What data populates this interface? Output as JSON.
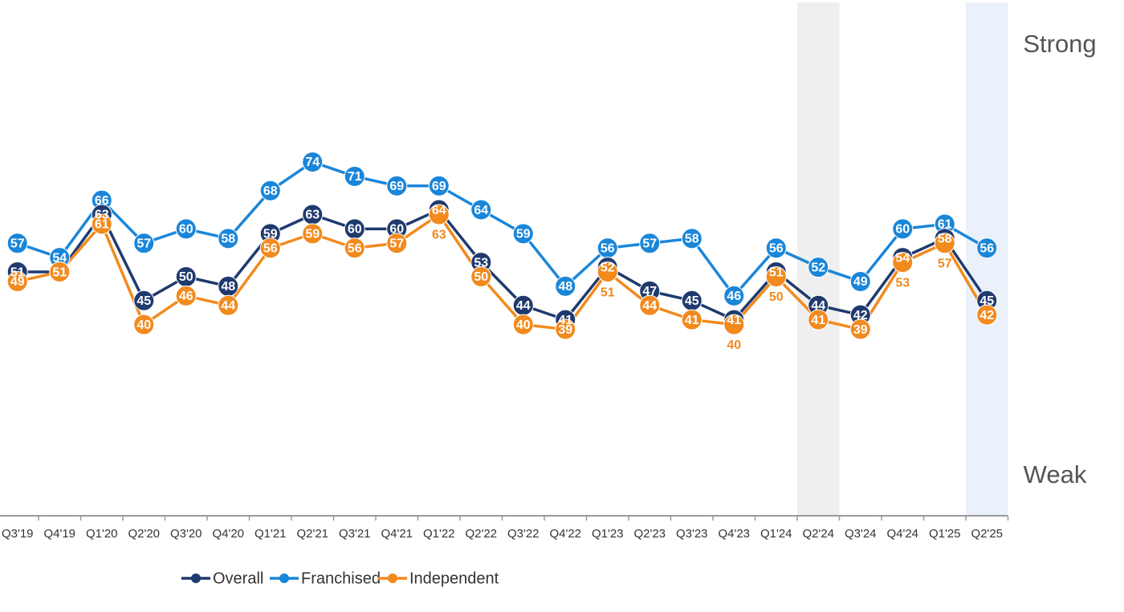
{
  "chart_data": {
    "type": "line",
    "categories": [
      "Q3'19",
      "Q4'19",
      "Q1'20",
      "Q2'20",
      "Q3'20",
      "Q4'20",
      "Q1'21",
      "Q2'21",
      "Q3'21",
      "Q4'21",
      "Q1'22",
      "Q2'22",
      "Q3'22",
      "Q4'22",
      "Q1'23",
      "Q2'23",
      "Q3'23",
      "Q4'23",
      "Q1'24",
      "Q2'24",
      "Q3'24",
      "Q4'24",
      "Q1'25",
      "Q2'25"
    ],
    "series": [
      {
        "name": "Overall",
        "color": "#1f3a6e",
        "values": [
          51,
          51,
          63,
          45,
          50,
          48,
          59,
          63,
          60,
          60,
          64,
          53,
          44,
          41,
          52,
          47,
          45,
          41,
          51,
          44,
          42,
          54,
          58,
          45
        ]
      },
      {
        "name": "Franchised",
        "color": "#1a86d9",
        "values": [
          57,
          54,
          66,
          57,
          60,
          58,
          68,
          74,
          71,
          69,
          69,
          64,
          59,
          48,
          56,
          57,
          58,
          46,
          56,
          52,
          49,
          60,
          61,
          56
        ]
      },
      {
        "name": "Independent",
        "color": "#f28a1e",
        "values": [
          49,
          51,
          61,
          40,
          46,
          44,
          56,
          59,
          56,
          57,
          63,
          50,
          40,
          39,
          51,
          44,
          41,
          40,
          50,
          41,
          39,
          53,
          57,
          42
        ]
      }
    ],
    "ylim": [
      0,
      100
    ],
    "y_axis_labels": {
      "top": "Strong",
      "bottom": "Weak"
    },
    "shaded": [
      {
        "index": 19,
        "color": "#efefef"
      },
      {
        "index": 23,
        "color": "#eaf1fb"
      }
    ],
    "legend": "bottom"
  }
}
